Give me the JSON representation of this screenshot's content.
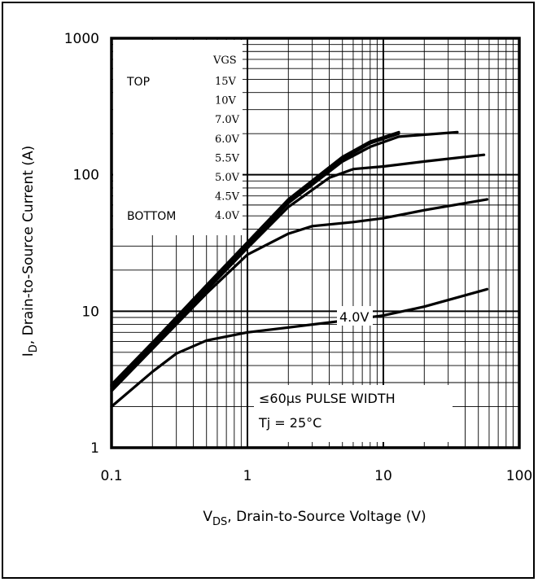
{
  "chart_data": {
    "type": "line",
    "title": "",
    "xlabel_main": "V",
    "xlabel_sub": "DS",
    "xlabel_rest": ", Drain-to-Source Voltage (V)",
    "ylabel_main": "I",
    "ylabel_sub": "D",
    "ylabel_rest": ", Drain-to-Source Current (A)",
    "xscale": "log",
    "yscale": "log",
    "xlim": [
      0.1,
      100
    ],
    "ylim": [
      1,
      1000
    ],
    "grid": true,
    "xticks": [
      {
        "value": 0.1,
        "label": "0.1"
      },
      {
        "value": 1,
        "label": "1"
      },
      {
        "value": 10,
        "label": "10"
      },
      {
        "value": 100,
        "label": "100"
      }
    ],
    "yticks": [
      {
        "value": 1,
        "label": "1"
      },
      {
        "value": 10,
        "label": "10"
      },
      {
        "value": 100,
        "label": "100"
      },
      {
        "value": 1000,
        "label": "1000"
      }
    ],
    "legend": {
      "header": "VGS",
      "top_label": "TOP",
      "bottom_label": "BOTTOM",
      "entries": [
        "15V",
        "10V",
        "7.0V",
        "6.0V",
        "5.5V",
        "5.0V",
        "4.5V",
        "4.0V"
      ]
    },
    "annotations": {
      "curve_label": "4.0V",
      "pulse": "≤60µs PULSE WIDTH",
      "temp": "Tj = 25°C"
    },
    "series": [
      {
        "x": [
          0.1,
          0.2,
          0.5,
          1,
          2,
          5,
          8,
          13
        ],
        "y": [
          2.9,
          5.9,
          15.5,
          32,
          66,
          135,
          175,
          205
        ]
      },
      {
        "x": [
          0.1,
          0.2,
          0.5,
          1,
          2,
          5,
          8,
          13
        ],
        "y": [
          2.85,
          5.8,
          15.2,
          31,
          64,
          130,
          170,
          200
        ]
      },
      {
        "x": [
          0.1,
          0.2,
          0.5,
          1,
          2,
          5,
          8,
          13,
          35
        ],
        "y": [
          2.8,
          5.7,
          14.8,
          30,
          62,
          125,
          160,
          190,
          205
        ]
      },
      {
        "x": [
          0.1,
          0.2,
          0.5,
          1,
          2,
          4,
          6,
          10,
          20,
          55
        ],
        "y": [
          2.7,
          5.5,
          14.2,
          29,
          58,
          95,
          110,
          115,
          125,
          140
        ]
      },
      {
        "x": [
          0.1,
          0.2,
          0.5,
          1,
          2,
          3,
          6,
          10,
          20,
          58
        ],
        "y": [
          2.6,
          5.3,
          13.5,
          26,
          37,
          42,
          45,
          48,
          55,
          66
        ]
      },
      {
        "x": [
          0.1,
          0.2,
          0.3,
          0.5,
          1,
          2,
          5,
          10,
          20,
          58
        ],
        "y": [
          2.0,
          3.6,
          4.9,
          6.1,
          7.0,
          7.6,
          8.5,
          9.3,
          10.8,
          14.5
        ]
      }
    ]
  }
}
